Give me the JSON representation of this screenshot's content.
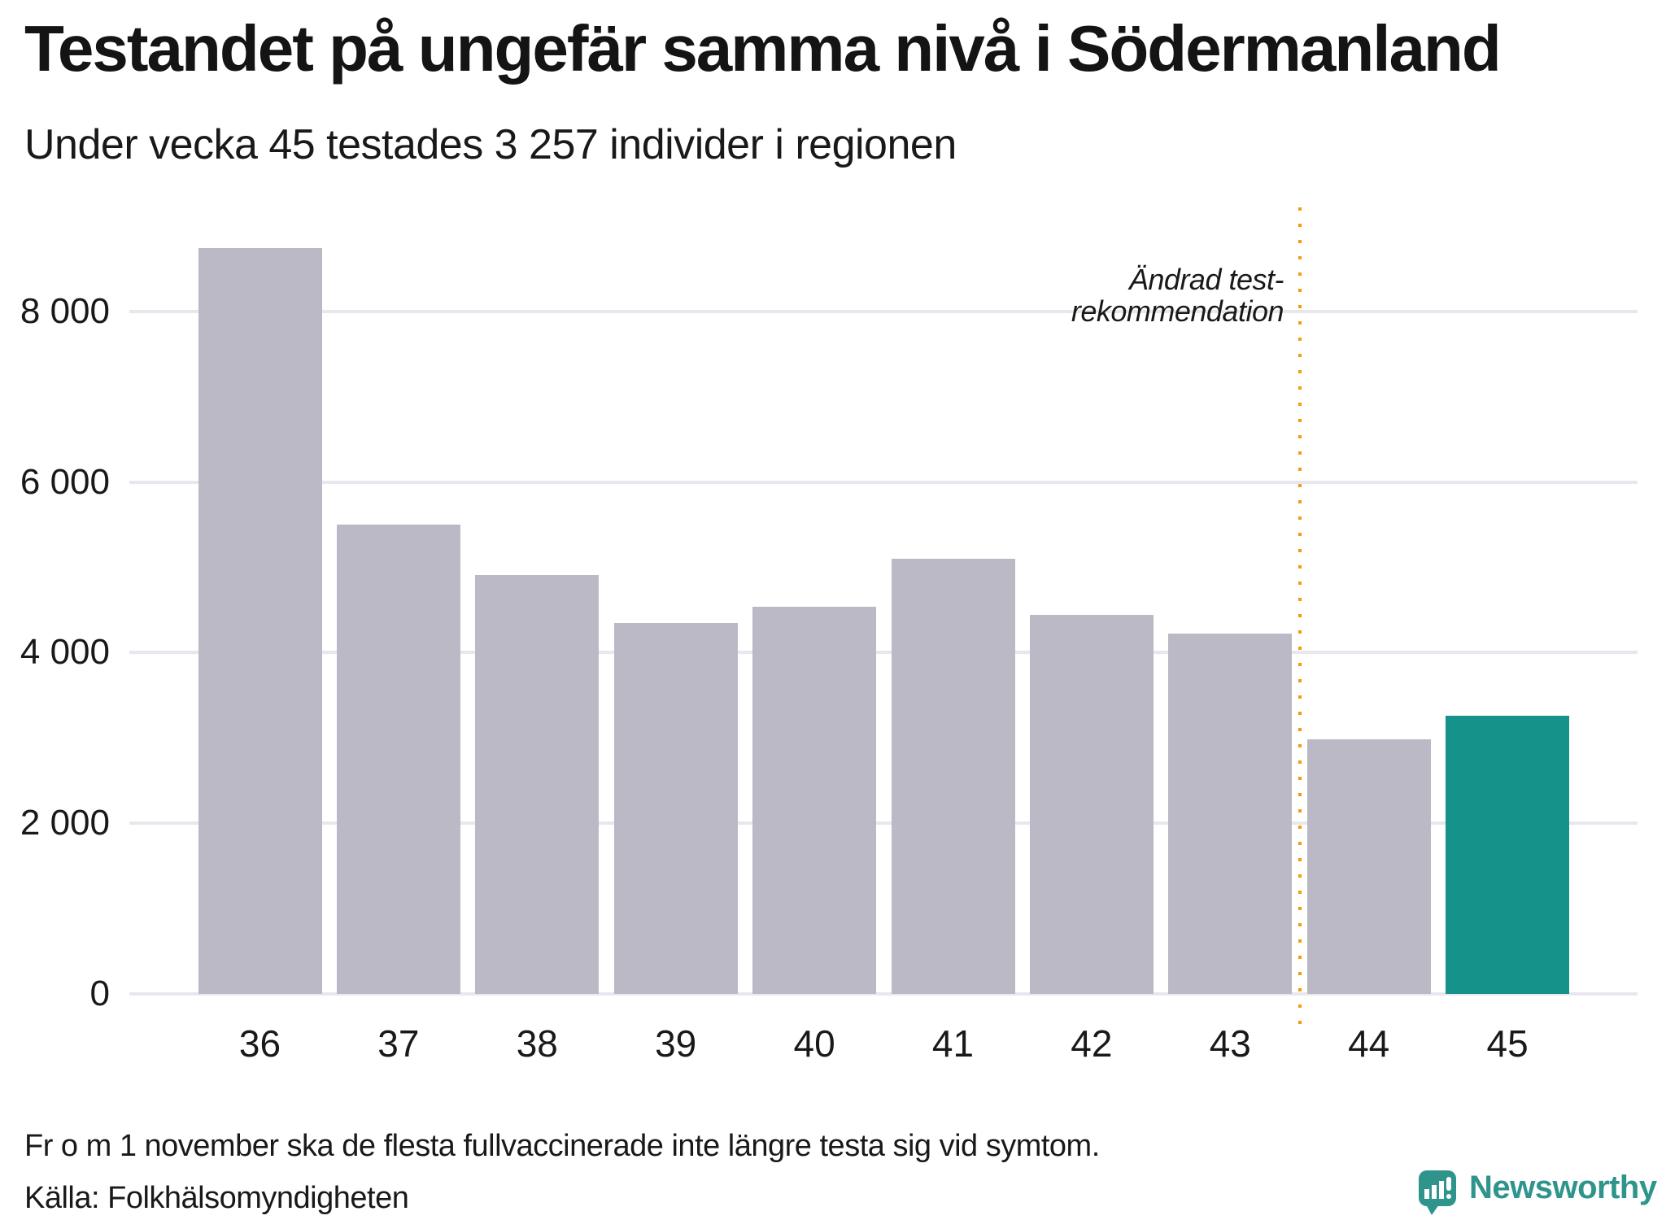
{
  "header": {
    "title": "Testandet på ungefär samma nivå i Södermanland",
    "subtitle": "Under vecka 45 testades 3 257 individer i regionen"
  },
  "chart_data": {
    "type": "bar",
    "title": "Testandet på ungefär samma nivå i Södermanland",
    "subtitle": "Under vecka 45 testades 3 257 individer i regionen",
    "categories": [
      "36",
      "37",
      "38",
      "39",
      "40",
      "41",
      "42",
      "43",
      "44",
      "45"
    ],
    "values": [
      8740,
      5500,
      4910,
      4350,
      4540,
      5100,
      4440,
      4220,
      2980,
      3257
    ],
    "xlabel": "",
    "ylabel": "",
    "ylim": [
      0,
      9220
    ],
    "grid": true,
    "legend": false,
    "yticks": [
      {
        "value": 0,
        "label": "0"
      },
      {
        "value": 2000,
        "label": "2 000"
      },
      {
        "value": 4000,
        "label": "4 000"
      },
      {
        "value": 6000,
        "label": "6 000"
      },
      {
        "value": 8000,
        "label": "8 000"
      }
    ],
    "highlight_index": 9,
    "divider": {
      "after_category": "43",
      "label_lines": [
        "Ändrad test-",
        "rekommendation"
      ]
    },
    "colors": {
      "bar": "#bcb9c6",
      "highlight": "#159289",
      "gridline": "#e8e7ed",
      "divider": "#f39c12"
    }
  },
  "footer": {
    "note": "Fr o m 1 november ska de flesta fullvaccinerade inte längre testa sig vid symtom.",
    "source": "Källa: Folkhälsomyndigheten"
  },
  "branding": {
    "name": "Newsworthy",
    "color": "#2f948c",
    "icon": "bar-chart-speech-bubble-icon"
  }
}
